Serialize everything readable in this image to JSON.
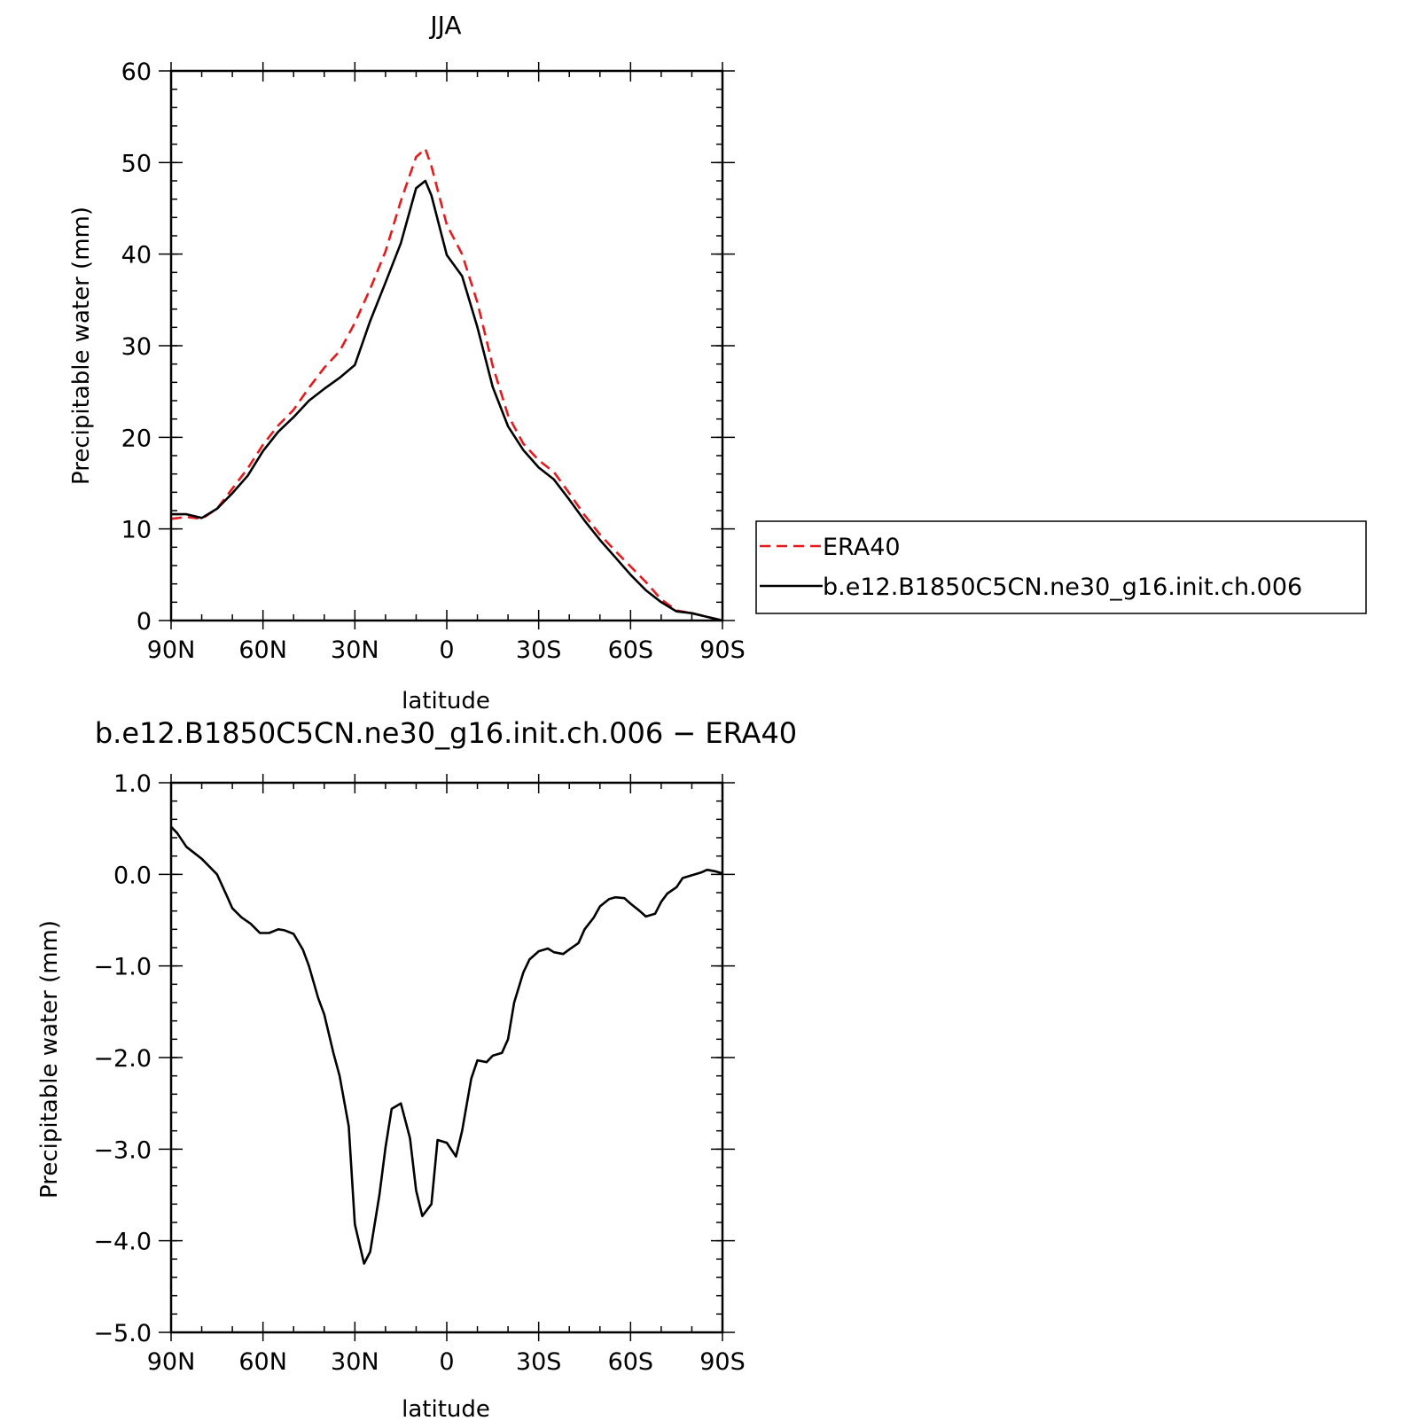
{
  "chart_data": [
    {
      "type": "line",
      "title": "JJA",
      "xlabel": "latitude",
      "ylabel": "Precipitable water (mm)",
      "xlim": [
        90,
        -90
      ],
      "ylim": [
        0,
        60
      ],
      "x_ticks": [
        90,
        60,
        30,
        0,
        -30,
        -60,
        -90
      ],
      "x_tick_labels": [
        "90N",
        "60N",
        "30N",
        "0",
        "30S",
        "60S",
        "90S"
      ],
      "y_ticks": [
        0,
        10,
        20,
        30,
        40,
        50,
        60
      ],
      "y_tick_labels": [
        "0",
        "10",
        "20",
        "30",
        "40",
        "50",
        "60"
      ],
      "grid": false,
      "legend": {
        "placement": "right",
        "entries": [
          "ERA40",
          "b.e12.B1850C5CN.ne30_g16.init.ch.006"
        ]
      },
      "x": [
        90,
        85,
        80,
        75,
        70,
        65,
        60,
        55,
        50,
        45,
        40,
        35,
        30,
        25,
        20,
        15,
        10,
        7,
        5,
        0,
        -5,
        -10,
        -15,
        -20,
        -25,
        -30,
        -35,
        -40,
        -45,
        -50,
        -55,
        -60,
        -65,
        -70,
        -75,
        -80,
        -85,
        -90
      ],
      "series": [
        {
          "name": "ERA40",
          "color": "#e41a1c",
          "dash": "dashed",
          "values": [
            11.1,
            11.3,
            11.1,
            12.2,
            14.4,
            16.6,
            19.2,
            21.3,
            23.0,
            25.4,
            27.6,
            29.4,
            32.5,
            36.2,
            40.3,
            45.8,
            50.6,
            51.5,
            49.6,
            43.2,
            40.0,
            34.7,
            27.8,
            22.4,
            19.3,
            17.5,
            16.2,
            13.9,
            11.5,
            9.4,
            7.6,
            5.9,
            4.2,
            2.3,
            1.1,
            0.8,
            0.4,
            0.0
          ]
        },
        {
          "name": "b.e12.B1850C5CN.ne30_g16.init.ch.006",
          "color": "#000000",
          "dash": "solid",
          "values": [
            11.6,
            11.6,
            11.2,
            12.2,
            13.9,
            15.8,
            18.5,
            20.6,
            22.2,
            24.0,
            25.3,
            26.5,
            27.9,
            32.7,
            36.9,
            41.2,
            47.2,
            48.0,
            46.4,
            39.9,
            37.6,
            32.0,
            25.5,
            21.2,
            18.6,
            16.7,
            15.4,
            13.2,
            10.9,
            8.8,
            6.9,
            5.0,
            3.3,
            2.0,
            1.0,
            0.8,
            0.4,
            0.0
          ]
        }
      ]
    },
    {
      "type": "line",
      "title": "b.e12.B1850C5CN.ne30_g16.init.ch.006 − ERA40",
      "xlabel": "latitude",
      "ylabel": "Precipitable water (mm)",
      "xlim": [
        90,
        -90
      ],
      "ylim": [
        -5,
        1
      ],
      "x_ticks": [
        90,
        60,
        30,
        0,
        -30,
        -60,
        -90
      ],
      "x_tick_labels": [
        "90N",
        "60N",
        "30N",
        "0",
        "30S",
        "60S",
        "90S"
      ],
      "y_ticks": [
        1,
        0,
        -1,
        -2,
        -3,
        -4,
        -5
      ],
      "y_tick_labels": [
        "1.0",
        "0.0",
        "−1.0",
        "−2.0",
        "−3.0",
        "−4.0",
        "−5.0"
      ],
      "grid": false,
      "x": [
        90,
        88,
        85,
        80,
        75,
        72,
        70,
        67,
        64,
        61,
        58,
        55,
        53,
        50,
        47,
        45,
        42,
        40,
        37,
        35,
        32,
        30,
        27,
        25,
        22,
        20,
        18,
        15,
        12,
        10,
        8,
        5,
        3,
        0,
        -3,
        -5,
        -8,
        -10,
        -13,
        -15,
        -18,
        -20,
        -22,
        -25,
        -27,
        -30,
        -33,
        -35,
        -38,
        -40,
        -43,
        -45,
        -48,
        -50,
        -53,
        -55,
        -58,
        -60,
        -63,
        -65,
        -68,
        -70,
        -72,
        -75,
        -77,
        -80,
        -83,
        -85,
        -88,
        -90
      ],
      "series": [
        {
          "name": "",
          "color": "#000000",
          "dash": "solid",
          "values": [
            0.52,
            0.45,
            0.3,
            0.17,
            0.0,
            -0.22,
            -0.37,
            -0.47,
            -0.54,
            -0.64,
            -0.64,
            -0.6,
            -0.61,
            -0.65,
            -0.82,
            -1.0,
            -1.35,
            -1.53,
            -1.95,
            -2.2,
            -2.75,
            -3.82,
            -4.25,
            -4.12,
            -3.5,
            -2.98,
            -2.56,
            -2.5,
            -2.88,
            -3.45,
            -3.73,
            -3.6,
            -2.9,
            -2.93,
            -3.08,
            -2.8,
            -2.23,
            -2.03,
            -2.05,
            -1.98,
            -1.95,
            -1.8,
            -1.4,
            -1.07,
            -0.93,
            -0.84,
            -0.81,
            -0.85,
            -0.87,
            -0.82,
            -0.75,
            -0.6,
            -0.47,
            -0.35,
            -0.27,
            -0.25,
            -0.26,
            -0.32,
            -0.4,
            -0.46,
            -0.43,
            -0.3,
            -0.21,
            -0.14,
            -0.04,
            -0.01,
            0.02,
            0.05,
            0.03,
            0.01
          ]
        }
      ]
    }
  ]
}
